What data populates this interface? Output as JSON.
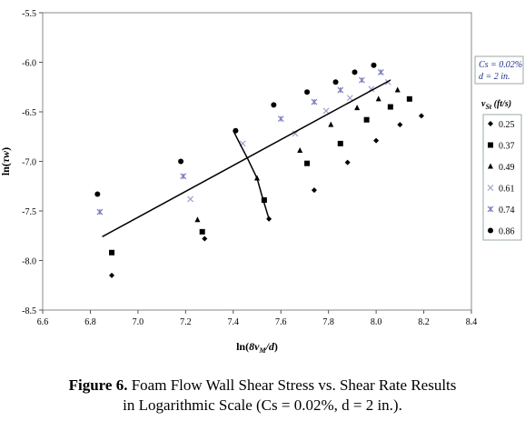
{
  "chart_data": {
    "type": "scatter",
    "xlabel": "ln(8v_M/d)",
    "ylabel": "ln(τw)",
    "xlim": [
      6.6,
      8.4
    ],
    "ylim": [
      -8.5,
      -5.5
    ],
    "xticks": [
      "6.6",
      "6.8",
      "7.0",
      "7.2",
      "7.4",
      "7.6",
      "7.8",
      "8.0",
      "8.2",
      "8.4"
    ],
    "yticks": [
      "-5.5",
      "-6.0",
      "-6.5",
      "-7.0",
      "-7.5",
      "-8.0",
      "-8.5"
    ],
    "grid": false,
    "legend_title": "v_St (ft/s)",
    "legend_position": "right",
    "series": [
      {
        "name": "0.25",
        "marker": "diamond",
        "color": "#000000",
        "points": [
          [
            6.89,
            -8.15
          ],
          [
            7.28,
            -7.78
          ],
          [
            7.55,
            -7.58
          ],
          [
            7.74,
            -7.29
          ],
          [
            7.88,
            -7.01
          ],
          [
            8.0,
            -6.79
          ],
          [
            8.1,
            -6.63
          ],
          [
            8.19,
            -6.54
          ]
        ]
      },
      {
        "name": "0.37",
        "marker": "square",
        "color": "#000000",
        "points": [
          [
            6.89,
            -7.92
          ],
          [
            7.27,
            -7.71
          ],
          [
            7.53,
            -7.39
          ],
          [
            7.71,
            -7.02
          ],
          [
            7.85,
            -6.82
          ],
          [
            7.96,
            -6.58
          ],
          [
            8.06,
            -6.45
          ],
          [
            8.14,
            -6.37
          ]
        ]
      },
      {
        "name": "0.49",
        "marker": "triangle",
        "color": "#000000",
        "points": [
          [
            7.25,
            -7.59
          ],
          [
            7.5,
            -7.17
          ],
          [
            7.68,
            -6.89
          ],
          [
            7.81,
            -6.63
          ],
          [
            7.92,
            -6.46
          ],
          [
            8.01,
            -6.37
          ],
          [
            8.09,
            -6.28
          ]
        ]
      },
      {
        "name": "0.61",
        "marker": "x",
        "color": "#9da0cc",
        "points": [
          [
            7.22,
            -7.38
          ],
          [
            7.44,
            -6.82
          ],
          [
            7.66,
            -6.72
          ],
          [
            7.79,
            -6.49
          ],
          [
            7.89,
            -6.36
          ],
          [
            7.98,
            -6.27
          ],
          [
            8.05,
            -6.2
          ]
        ]
      },
      {
        "name": "0.74",
        "marker": "star",
        "color": "#7a7dc0",
        "points": [
          [
            6.84,
            -7.51
          ],
          [
            7.19,
            -7.15
          ],
          [
            7.6,
            -6.57
          ],
          [
            7.74,
            -6.4
          ],
          [
            7.85,
            -6.28
          ],
          [
            7.94,
            -6.18
          ],
          [
            8.02,
            -6.1
          ]
        ]
      },
      {
        "name": "0.86",
        "marker": "circle",
        "color": "#000000",
        "points": [
          [
            6.83,
            -7.33
          ],
          [
            7.18,
            -7.0
          ],
          [
            7.41,
            -6.69
          ],
          [
            7.57,
            -6.43
          ],
          [
            7.71,
            -6.3
          ],
          [
            7.83,
            -6.2
          ],
          [
            7.91,
            -6.1
          ],
          [
            7.99,
            -6.03
          ]
        ]
      }
    ],
    "lines": [
      {
        "points": [
          [
            6.85,
            -7.76
          ],
          [
            8.06,
            -6.18
          ]
        ]
      },
      {
        "points": [
          [
            7.4,
            -6.69
          ],
          [
            7.43,
            -6.83
          ],
          [
            7.46,
            -6.97
          ],
          [
            7.5,
            -7.17
          ],
          [
            7.52,
            -7.34
          ],
          [
            7.55,
            -7.58
          ]
        ]
      }
    ],
    "annotation": {
      "line1": "Cs = 0.02%",
      "line2": "d = 2 in."
    }
  },
  "caption": {
    "label": "Figure 6.",
    "line1": " Foam Flow Wall Shear Stress vs. Shear Rate Results",
    "line2": "in Logarithmic Scale (Cs = 0.02%, d = 2 in.)."
  }
}
